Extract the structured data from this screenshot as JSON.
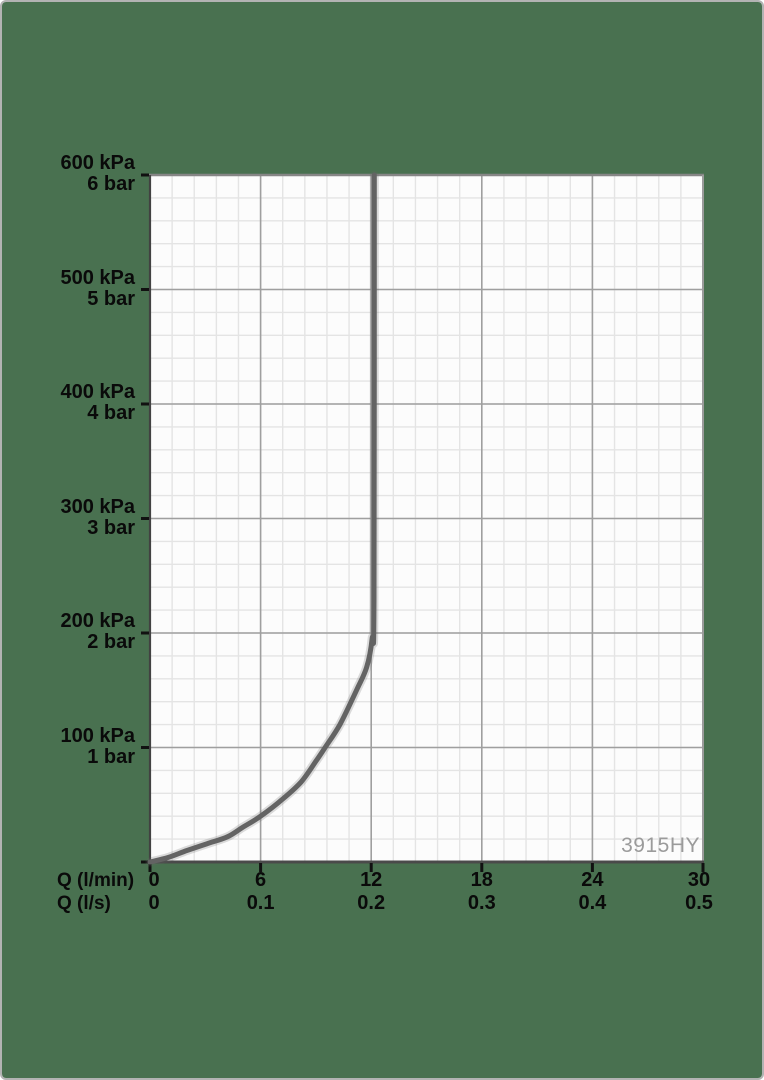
{
  "frame": {
    "background_color": "#497150",
    "border_color": "#b3b3b3",
    "plot_background": "#fcfcfc"
  },
  "chart_data": {
    "type": "line",
    "title": "",
    "watermark": "3915HY",
    "x_axis_rows": [
      {
        "label": "Q (l/min)",
        "ticks": [
          "0",
          "6",
          "12",
          "18",
          "24",
          "30"
        ]
      },
      {
        "label": "Q (l/s)",
        "ticks": [
          "0",
          "0.1",
          "0.2",
          "0.3",
          "0.4",
          "0.5"
        ]
      }
    ],
    "x_range_lmin": [
      0,
      30
    ],
    "y_axis_labels": [
      {
        "kpa": "600 kPa",
        "bar": "6 bar",
        "value": 600
      },
      {
        "kpa": "500 kPa",
        "bar": "5 bar",
        "value": 500
      },
      {
        "kpa": "400 kPa",
        "bar": "4 bar",
        "value": 400
      },
      {
        "kpa": "300 kPa",
        "bar": "3 bar",
        "value": 300
      },
      {
        "kpa": "200 kPa",
        "bar": "2 bar",
        "value": 200
      },
      {
        "kpa": "100 kPa",
        "bar": "1 bar",
        "value": 100
      }
    ],
    "y_range_kpa": [
      0,
      600
    ],
    "grid": {
      "x_minor_divisions": 25,
      "y_minor_divisions": 30,
      "x_major_every_lmin": 6,
      "y_major_every_kpa": 100,
      "minor_color": "#e4e4e4",
      "major_color": "#9f9f9f"
    },
    "series": [
      {
        "name": "pressure-flow-curve",
        "color": "#636363",
        "points_q_lmin_p_kpa": [
          [
            0,
            0
          ],
          [
            1,
            4
          ],
          [
            2,
            10
          ],
          [
            3.1,
            16
          ],
          [
            4.2,
            22
          ],
          [
            5,
            30
          ],
          [
            6,
            40
          ],
          [
            7.2,
            55
          ],
          [
            8.2,
            70
          ],
          [
            9,
            88
          ],
          [
            9.5,
            100
          ],
          [
            10.3,
            120
          ],
          [
            11.2,
            150
          ],
          [
            11.75,
            170
          ],
          [
            12.05,
            195
          ],
          [
            12.15,
            230
          ],
          [
            12.17,
            600
          ]
        ]
      }
    ],
    "axis_frame_colors": {
      "top": "#868686",
      "right": "#9b9b9b",
      "left": "#424242",
      "bottom": "#4a4a4a",
      "tick": "#111111"
    }
  }
}
